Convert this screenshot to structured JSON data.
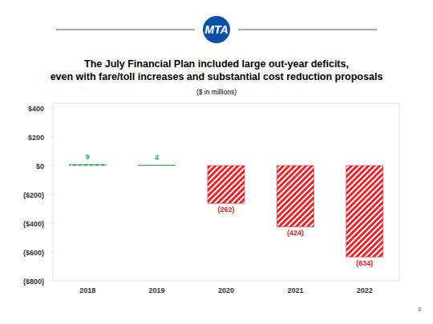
{
  "logo": "MTA",
  "page_number": "3",
  "chart_data": {
    "type": "bar",
    "title": "The July Financial Plan included large out-year deficits,\neven with fare/toll increases and substantial cost reduction proposals",
    "subtitle": "($ in millions)",
    "categories": [
      "2018",
      "2019",
      "2020",
      "2021",
      "2022"
    ],
    "values": [
      9,
      4,
      -262,
      -424,
      -634
    ],
    "value_labels": [
      "9",
      "4",
      "(262)",
      "(424)",
      "(634)"
    ],
    "colors": [
      "#3aa655",
      "#3aa655",
      "#e3262c",
      "#e3262c",
      "#e3262c"
    ],
    "ylim": [
      -800,
      400
    ],
    "yticks": [
      {
        "value": 400,
        "label": "$400"
      },
      {
        "value": 200,
        "label": "$200"
      },
      {
        "value": 0,
        "label": "$0"
      },
      {
        "value": -200,
        "label": "($200)"
      },
      {
        "value": -400,
        "label": "($400)"
      },
      {
        "value": -600,
        "label": "($600)"
      },
      {
        "value": -800,
        "label": "($800)"
      }
    ],
    "grid": false,
    "data_labels": true
  }
}
